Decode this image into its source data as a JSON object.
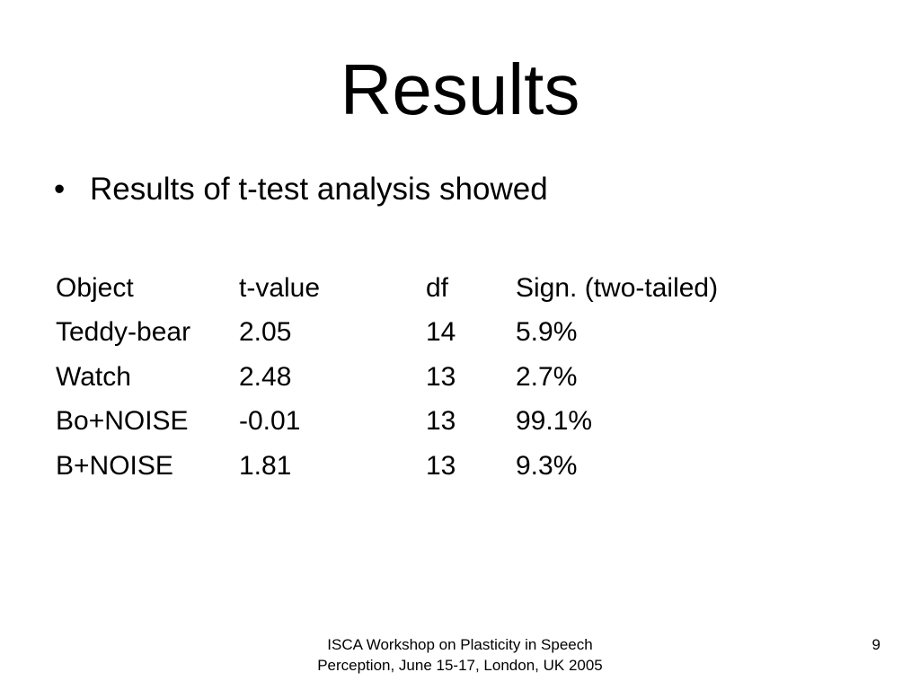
{
  "slide": {
    "title": "Results",
    "bullet": "Results of t-test analysis showed",
    "bullet_marker": "•"
  },
  "table": {
    "headers": [
      "Object",
      "t-value",
      "df",
      "Sign. (two-tailed)"
    ],
    "rows": [
      [
        "Teddy-bear",
        "2.05",
        "14",
        "5.9%"
      ],
      [
        "Watch",
        "2.48",
        "13",
        "2.7%"
      ],
      [
        "Bo+NOISE",
        "-0.01",
        "13",
        "99.1%"
      ],
      [
        "B+NOISE",
        "1.81",
        "13",
        "9.3%"
      ]
    ]
  },
  "footer": {
    "text": "ISCA Workshop on Plasticity in Speech Perception, June 15-17, London, UK 2005",
    "page_number": "9"
  }
}
